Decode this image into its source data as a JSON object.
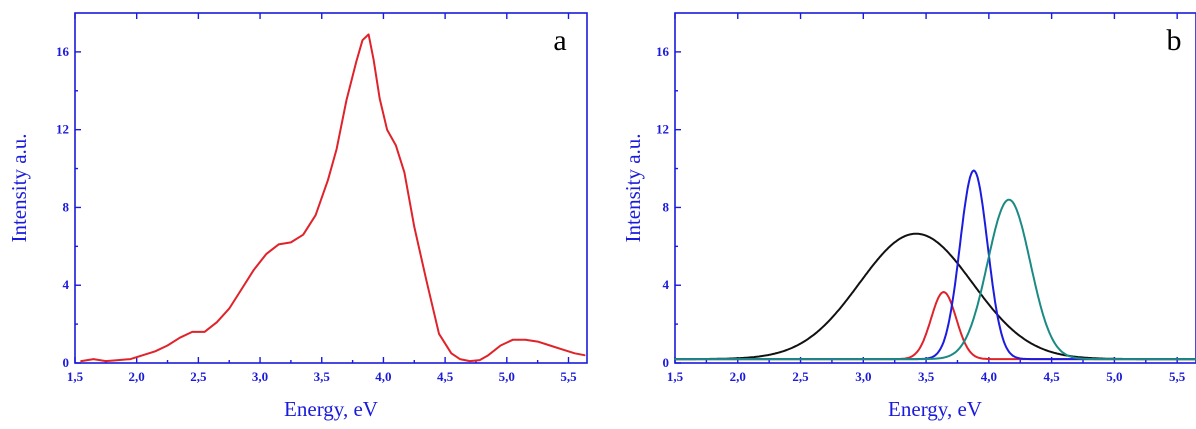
{
  "colors": {
    "axis": "#1a1adb",
    "red": "#e0222a",
    "blue": "#1c1ce0",
    "teal": "#1b8a84",
    "black": "#111111"
  },
  "chart_data": [
    {
      "type": "line",
      "panel_label": "a",
      "xlabel": "Energy, eV",
      "ylabel": "Intensity a.u.",
      "xlim": [
        1.5,
        5.65
      ],
      "ylim": [
        0,
        18
      ],
      "x_ticks": [
        "1,5",
        "2,0",
        "2,5",
        "3,0",
        "3,5",
        "4,0",
        "4,5",
        "5,0",
        "5,5"
      ],
      "x_tick_values": [
        1.5,
        2.0,
        2.5,
        3.0,
        3.5,
        4.0,
        4.5,
        5.0,
        5.5
      ],
      "y_ticks": [
        "0",
        "4",
        "8",
        "12",
        "16"
      ],
      "y_tick_values": [
        0,
        4,
        8,
        12,
        16
      ],
      "grid": false,
      "series": [
        {
          "color": "#e0222a",
          "x": [
            1.55,
            1.65,
            1.75,
            1.85,
            1.95,
            2.05,
            2.15,
            2.25,
            2.35,
            2.45,
            2.55,
            2.65,
            2.75,
            2.85,
            2.95,
            3.05,
            3.15,
            3.25,
            3.35,
            3.45,
            3.55,
            3.62,
            3.7,
            3.78,
            3.83,
            3.88,
            3.92,
            3.97,
            4.03,
            4.1,
            4.17,
            4.25,
            4.35,
            4.45,
            4.55,
            4.62,
            4.7,
            4.78,
            4.85,
            4.95,
            5.05,
            5.15,
            5.25,
            5.35,
            5.45,
            5.55,
            5.63
          ],
          "y": [
            0.1,
            0.2,
            0.1,
            0.15,
            0.2,
            0.4,
            0.6,
            0.9,
            1.3,
            1.6,
            1.6,
            2.1,
            2.8,
            3.8,
            4.8,
            5.6,
            6.1,
            6.2,
            6.6,
            7.6,
            9.4,
            11.0,
            13.5,
            15.5,
            16.6,
            16.9,
            15.6,
            13.6,
            12.0,
            11.2,
            9.8,
            7.0,
            4.2,
            1.5,
            0.5,
            0.2,
            0.1,
            0.15,
            0.4,
            0.9,
            1.2,
            1.2,
            1.1,
            0.9,
            0.7,
            0.5,
            0.4
          ]
        }
      ]
    },
    {
      "type": "line",
      "panel_label": "b",
      "xlabel": "Energy, eV",
      "ylabel": "Intensity a.u.",
      "xlim": [
        1.5,
        5.65
      ],
      "ylim": [
        0,
        18
      ],
      "x_ticks": [
        "1,5",
        "2,0",
        "2,5",
        "3,0",
        "3,5",
        "4,0",
        "4,5",
        "5,0",
        "5,5"
      ],
      "x_tick_values": [
        1.5,
        2.0,
        2.5,
        3.0,
        3.5,
        4.0,
        4.5,
        5.0,
        5.5
      ],
      "y_ticks": [
        "0",
        "4",
        "8",
        "12",
        "16"
      ],
      "y_tick_values": [
        0,
        4,
        8,
        12,
        16
      ],
      "grid": false,
      "baseline": 0.2,
      "series": [
        {
          "color": "#111111",
          "peak_center": 3.42,
          "peak_height": 6.45,
          "peak_sigma": 0.45
        },
        {
          "color": "#e0222a",
          "peak_center": 3.64,
          "peak_height": 3.45,
          "peak_sigma": 0.1
        },
        {
          "color": "#1c1ce0",
          "peak_center": 3.88,
          "peak_height": 9.7,
          "peak_sigma": 0.11
        },
        {
          "color": "#1b8a84",
          "peak_center": 4.16,
          "peak_height": 8.2,
          "peak_sigma": 0.17
        }
      ]
    }
  ]
}
